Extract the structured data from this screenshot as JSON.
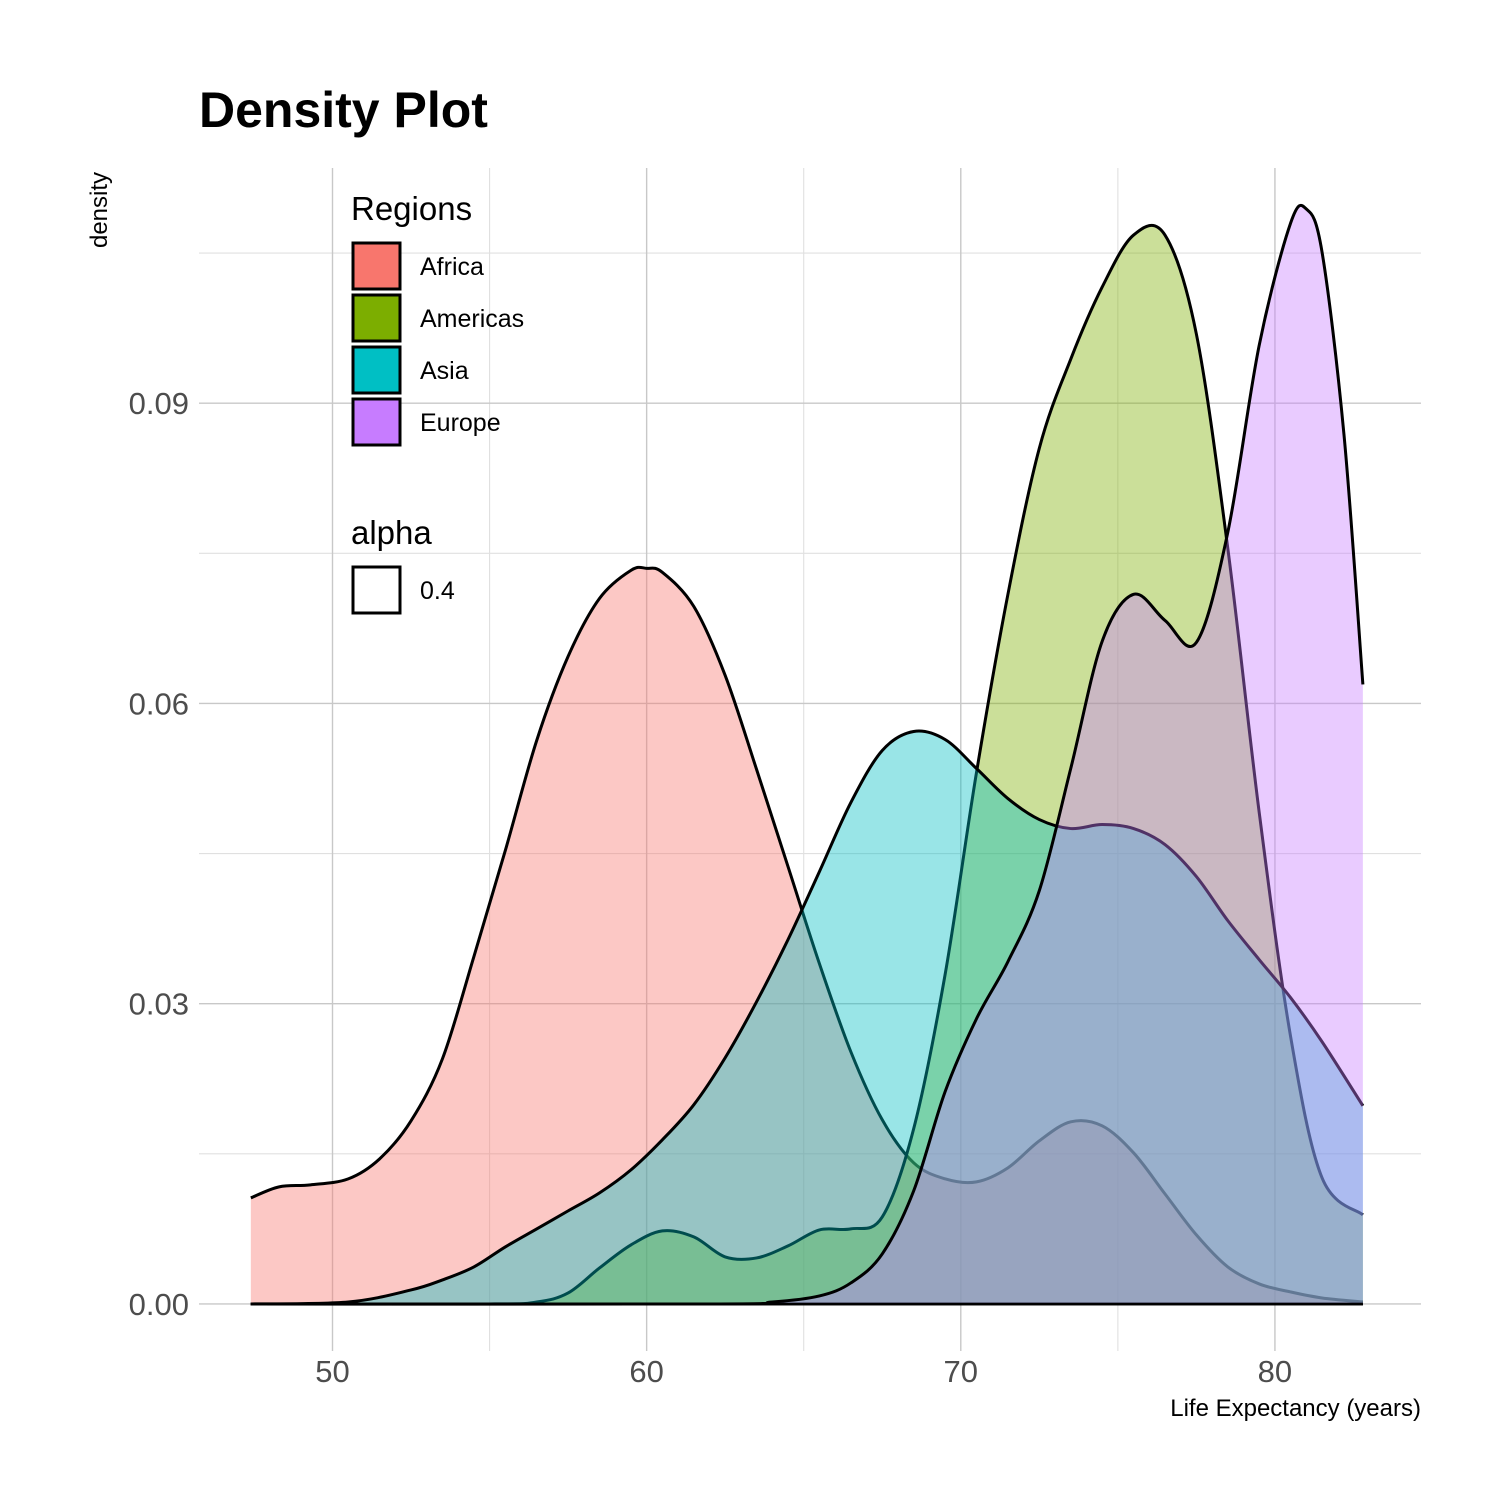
{
  "chart_data": {
    "type": "area",
    "title": "Density Plot",
    "xlabel": "Life Expectancy (years)",
    "ylabel": "density",
    "xlim": [
      45.75,
      84.65
    ],
    "ylim": [
      -0.0047,
      0.1135
    ],
    "x_ticks": [
      50,
      60,
      70,
      80
    ],
    "x_tick_labels": [
      "50",
      "60",
      "70",
      "80"
    ],
    "y_ticks": [
      0.0,
      0.03,
      0.06,
      0.09
    ],
    "y_tick_labels": [
      "0.00",
      "0.03",
      "0.06",
      "0.09"
    ],
    "grid": true,
    "legend": {
      "placement": "top-left",
      "fill_title": "Regions",
      "alpha_title": "alpha",
      "alpha_label": "0.4",
      "alpha_value": 0.4
    },
    "series": [
      {
        "name": "Africa",
        "color": "#F8766D",
        "points": [
          [
            47.4,
            0.0106
          ],
          [
            48.3,
            0.0117
          ],
          [
            49.3,
            0.0119
          ],
          [
            50.5,
            0.0125
          ],
          [
            51.5,
            0.0145
          ],
          [
            52.5,
            0.0183
          ],
          [
            53.5,
            0.0245
          ],
          [
            54.5,
            0.0347
          ],
          [
            55.5,
            0.0453
          ],
          [
            56.5,
            0.0563
          ],
          [
            57.5,
            0.0647
          ],
          [
            58.5,
            0.0705
          ],
          [
            59.5,
            0.0733
          ],
          [
            60.0,
            0.0735
          ],
          [
            60.5,
            0.0731
          ],
          [
            61.5,
            0.0697
          ],
          [
            62.5,
            0.0628
          ],
          [
            63.5,
            0.0534
          ],
          [
            64.5,
            0.0437
          ],
          [
            65.5,
            0.034
          ],
          [
            66.5,
            0.0252
          ],
          [
            67.5,
            0.0184
          ],
          [
            68.5,
            0.0141
          ],
          [
            69.5,
            0.0125
          ],
          [
            70.5,
            0.0122
          ],
          [
            71.5,
            0.0136
          ],
          [
            72.5,
            0.0163
          ],
          [
            73.5,
            0.0182
          ],
          [
            74.5,
            0.0178
          ],
          [
            75.5,
            0.0151
          ],
          [
            76.5,
            0.011
          ],
          [
            77.5,
            0.0069
          ],
          [
            78.5,
            0.0037
          ],
          [
            79.5,
            0.002
          ],
          [
            80.5,
            0.0012
          ],
          [
            81.5,
            0.0006
          ],
          [
            82.8,
            0.0002
          ]
        ]
      },
      {
        "name": "Americas",
        "color": "#7CAE00",
        "points": [
          [
            47.4,
            0.0
          ],
          [
            55.0,
            0.0
          ],
          [
            56.5,
            0.0002
          ],
          [
            57.5,
            0.0011
          ],
          [
            58.5,
            0.0036
          ],
          [
            59.5,
            0.0059
          ],
          [
            60.5,
            0.0073
          ],
          [
            61.5,
            0.0067
          ],
          [
            62.5,
            0.0047
          ],
          [
            63.5,
            0.0046
          ],
          [
            64.5,
            0.0058
          ],
          [
            65.5,
            0.0074
          ],
          [
            66.5,
            0.0075
          ],
          [
            67.5,
            0.0087
          ],
          [
            68.5,
            0.0175
          ],
          [
            69.5,
            0.0329
          ],
          [
            70.5,
            0.0531
          ],
          [
            71.5,
            0.0709
          ],
          [
            72.5,
            0.0855
          ],
          [
            73.5,
            0.0944
          ],
          [
            74.5,
            0.1016
          ],
          [
            75.5,
            0.1068
          ],
          [
            76.5,
            0.1068
          ],
          [
            77.5,
            0.0969
          ],
          [
            78.5,
            0.0755
          ],
          [
            79.5,
            0.0491
          ],
          [
            80.5,
            0.0267
          ],
          [
            81.5,
            0.0126
          ],
          [
            82.8,
            0.0089
          ]
        ]
      },
      {
        "name": "Asia",
        "color": "#00BFC4",
        "points": [
          [
            47.4,
            0.0
          ],
          [
            50.5,
            0.0002
          ],
          [
            52.5,
            0.0014
          ],
          [
            53.5,
            0.0024
          ],
          [
            54.5,
            0.0037
          ],
          [
            55.5,
            0.0057
          ],
          [
            56.5,
            0.0075
          ],
          [
            57.5,
            0.0093
          ],
          [
            58.5,
            0.0111
          ],
          [
            59.5,
            0.0134
          ],
          [
            60.5,
            0.0164
          ],
          [
            61.5,
            0.0199
          ],
          [
            62.5,
            0.0246
          ],
          [
            63.5,
            0.0302
          ],
          [
            64.5,
            0.0364
          ],
          [
            65.5,
            0.0432
          ],
          [
            66.5,
            0.0501
          ],
          [
            67.5,
            0.0553
          ],
          [
            68.5,
            0.0572
          ],
          [
            69.5,
            0.0564
          ],
          [
            70.5,
            0.0535
          ],
          [
            71.5,
            0.0505
          ],
          [
            72.5,
            0.0484
          ],
          [
            73.5,
            0.0475
          ],
          [
            74.5,
            0.0479
          ],
          [
            75.5,
            0.0475
          ],
          [
            76.5,
            0.0459
          ],
          [
            77.5,
            0.0427
          ],
          [
            78.5,
            0.0383
          ],
          [
            79.5,
            0.0344
          ],
          [
            80.5,
            0.0306
          ],
          [
            81.5,
            0.0262
          ],
          [
            82.8,
            0.0198
          ]
        ]
      },
      {
        "name": "Europe",
        "color": "#C77CFF",
        "points": [
          [
            47.4,
            0.0
          ],
          [
            62.0,
            0.0
          ],
          [
            64.0,
            0.0002
          ],
          [
            65.5,
            0.0008
          ],
          [
            66.5,
            0.0021
          ],
          [
            67.5,
            0.005
          ],
          [
            68.5,
            0.0113
          ],
          [
            69.5,
            0.0212
          ],
          [
            70.5,
            0.0285
          ],
          [
            71.5,
            0.0342
          ],
          [
            72.5,
            0.0413
          ],
          [
            73.5,
            0.0535
          ],
          [
            74.5,
            0.0662
          ],
          [
            75.5,
            0.0709
          ],
          [
            76.5,
            0.0683
          ],
          [
            77.5,
            0.0661
          ],
          [
            78.5,
            0.0771
          ],
          [
            79.5,
            0.0958
          ],
          [
            80.5,
            0.108
          ],
          [
            81.0,
            0.1094
          ],
          [
            81.5,
            0.1051
          ],
          [
            82.2,
            0.0868
          ],
          [
            82.8,
            0.0619
          ]
        ]
      }
    ]
  }
}
